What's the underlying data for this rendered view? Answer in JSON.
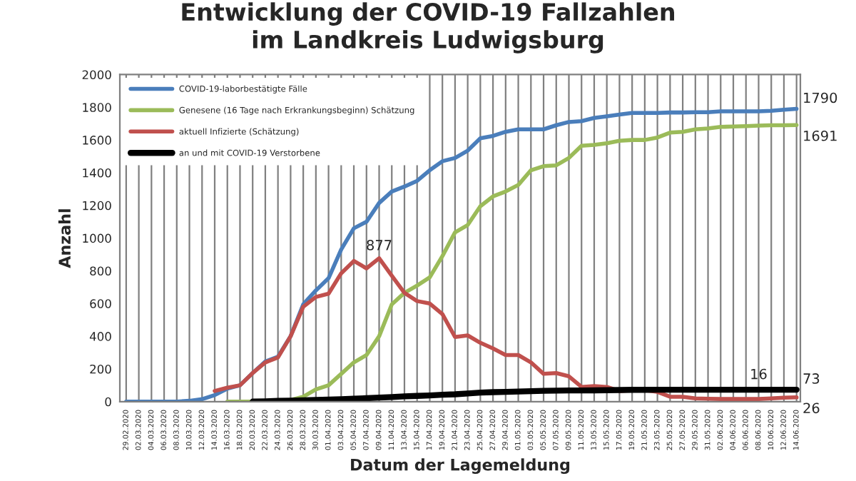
{
  "chart_data": {
    "type": "line",
    "title": "Entwicklung der COVID-19 Fallzahlen\nim Landkreis Ludwigsburg",
    "xlabel": "Datum der Lagemeldung",
    "ylabel": "Anzahl",
    "categories": [
      "29.02.2020",
      "02.03.2020",
      "04.03.2020",
      "06.03.2020",
      "08.03.2020",
      "10.03.2020",
      "12.03.2020",
      "14.03.2020",
      "16.03.2020",
      "18.03.2020",
      "20.03.2020",
      "22.03.2020",
      "24.03.2020",
      "26.03.2020",
      "28.03.2020",
      "30.03.2020",
      "01.04.2020",
      "03.04.2020",
      "05.04.2020",
      "07.04.2020",
      "09.04.2020",
      "11.04.2020",
      "13.04.2020",
      "15.04.2020",
      "17.04.2020",
      "19.04.2020",
      "21.04.2020",
      "23.04.2020",
      "25.04.2020",
      "27.04.2020",
      "29.04.2020",
      "01.05.2020",
      "03.05.2020",
      "05.05.2020",
      "07.05.2020",
      "09.05.2020",
      "11.05.2020",
      "13.05.2020",
      "15.05.2020",
      "17.05.2020",
      "19.05.2020",
      "21.05.2020",
      "23.05.2020",
      "25.05.2020",
      "27.05.2020",
      "29.05.2020",
      "31.05.2020",
      "02.06.2020",
      "04.06.2020",
      "06.06.2020",
      "08.06.2020",
      "10.06.2020",
      "12.06.2020",
      "14.06.2020"
    ],
    "series": [
      {
        "name": "COVID-19-laborbestätigte Fälle",
        "color": "#4a7ebb",
        "values": [
          0,
          0,
          0,
          0,
          0,
          5,
          15,
          40,
          80,
          100,
          175,
          245,
          275,
          400,
          595,
          680,
          755,
          930,
          1060,
          1100,
          1215,
          1285,
          1315,
          1350,
          1415,
          1470,
          1490,
          1535,
          1610,
          1625,
          1650,
          1665,
          1665,
          1665,
          1690,
          1710,
          1715,
          1735,
          1745,
          1755,
          1765,
          1765,
          1765,
          1768,
          1768,
          1770,
          1770,
          1775,
          1775,
          1775,
          1775,
          1778,
          1785,
          1790
        ]
      },
      {
        "name": "Genesene (16 Tage nach Erkrankungsbeginn) Schätzung",
        "color": "#9bbb59",
        "values": [
          null,
          null,
          null,
          null,
          null,
          null,
          null,
          null,
          0,
          0,
          0,
          0,
          0,
          10,
          30,
          75,
          100,
          170,
          240,
          285,
          400,
          595,
          665,
          710,
          760,
          890,
          1035,
          1080,
          1195,
          1255,
          1285,
          1325,
          1415,
          1440,
          1445,
          1490,
          1565,
          1570,
          1580,
          1595,
          1600,
          1600,
          1615,
          1645,
          1650,
          1665,
          1670,
          1680,
          1682,
          1685,
          1688,
          1690,
          1690,
          1691
        ]
      },
      {
        "name": "aktuell Infizierte (Schätzung)",
        "color": "#c0504d",
        "values": [
          null,
          null,
          null,
          null,
          null,
          null,
          null,
          65,
          85,
          100,
          175,
          240,
          270,
          400,
          580,
          640,
          660,
          785,
          860,
          815,
          877,
          770,
          665,
          615,
          600,
          535,
          395,
          405,
          360,
          325,
          285,
          285,
          240,
          170,
          175,
          155,
          90,
          95,
          90,
          65,
          70,
          70,
          60,
          30,
          30,
          20,
          18,
          16,
          16,
          16,
          16,
          20,
          24,
          26
        ]
      },
      {
        "name": "an und mit COVID-19 Verstorbene",
        "color": "#000000",
        "values": [
          null,
          null,
          null,
          null,
          null,
          null,
          null,
          null,
          null,
          null,
          0,
          2,
          5,
          6,
          8,
          10,
          12,
          15,
          18,
          21,
          25,
          28,
          32,
          35,
          38,
          42,
          45,
          50,
          55,
          58,
          60,
          62,
          64,
          66,
          67,
          68,
          68,
          69,
          70,
          71,
          72,
          72,
          73,
          73,
          73,
          73,
          73,
          73,
          73,
          73,
          73,
          73,
          73,
          73
        ]
      }
    ],
    "ylim": [
      0,
      2000
    ],
    "yticks": [
      0,
      200,
      400,
      600,
      800,
      1000,
      1200,
      1400,
      1600,
      1800,
      2000
    ],
    "grid": "x",
    "legend": "top left",
    "annotations": [
      {
        "text": "877",
        "x": "09.04.2020",
        "y": 877
      },
      {
        "text": "16",
        "x": "08.06.2020",
        "y": 16
      },
      {
        "text": "1790",
        "x": "14.06.2020",
        "y": 1790
      },
      {
        "text": "1691",
        "x": "14.06.2020",
        "y": 1691
      },
      {
        "text": "73",
        "x": "14.06.2020",
        "y": 73
      },
      {
        "text": "26",
        "x": "14.06.2020",
        "y": 26
      }
    ]
  }
}
